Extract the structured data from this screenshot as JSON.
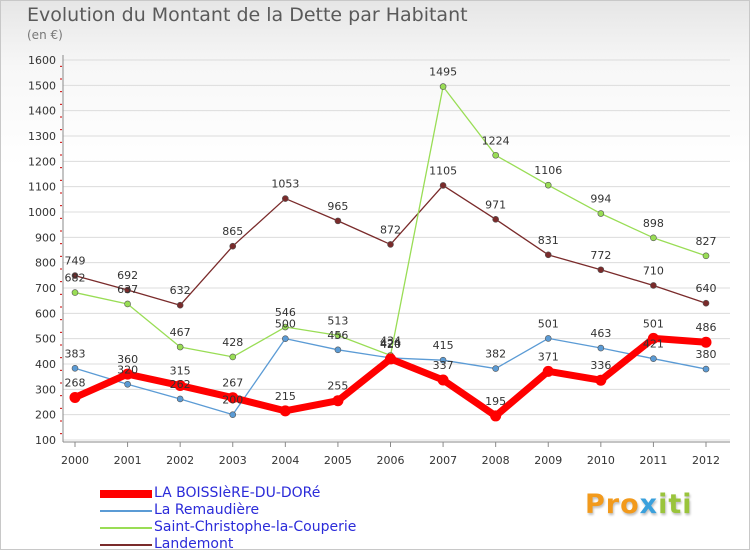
{
  "header": {
    "title": "Evolution du Montant de la Dette par Habitant",
    "unit": "(en €)"
  },
  "logo": {
    "parts": [
      "Pro",
      "x",
      "iti"
    ]
  },
  "chart_data": {
    "type": "line",
    "title": "Evolution du Montant de la Dette par Habitant",
    "subtitle": "(en €)",
    "xlabel": "",
    "ylabel": "",
    "x": [
      "2000",
      "2001",
      "2002",
      "2003",
      "2004",
      "2005",
      "2006",
      "2007",
      "2008",
      "2009",
      "2010",
      "2011",
      "2012"
    ],
    "ylim": [
      100,
      1600
    ],
    "yticks": [
      "100",
      "200",
      "300",
      "400",
      "500",
      "600",
      "700",
      "800",
      "900",
      "1000",
      "1100",
      "1200",
      "1300",
      "1400",
      "1500",
      "1600"
    ],
    "grid": "horizontal",
    "legend": "bottom-left",
    "series": [
      {
        "name": "LA BOISSIèRE-DU-DORé",
        "color": "#ff0000",
        "values": [
          268,
          360,
          315,
          267,
          215,
          255,
          420,
          337,
          195,
          371,
          336,
          501,
          486
        ]
      },
      {
        "name": "La Remaudière",
        "color": "#5b9bd5",
        "values": [
          383,
          320,
          262,
          200,
          500,
          456,
          424,
          415,
          382,
          501,
          463,
          421,
          380
        ]
      },
      {
        "name": "Saint-Christophe-la-Couperie",
        "color": "#99dd55",
        "values": [
          682,
          637,
          467,
          428,
          546,
          513,
          434,
          1495,
          1224,
          1106,
          994,
          898,
          827
        ]
      },
      {
        "name": "Landemont",
        "color": "#7a2b2b",
        "values": [
          749,
          692,
          632,
          865,
          1053,
          965,
          872,
          1105,
          971,
          831,
          772,
          710,
          640
        ]
      }
    ]
  }
}
